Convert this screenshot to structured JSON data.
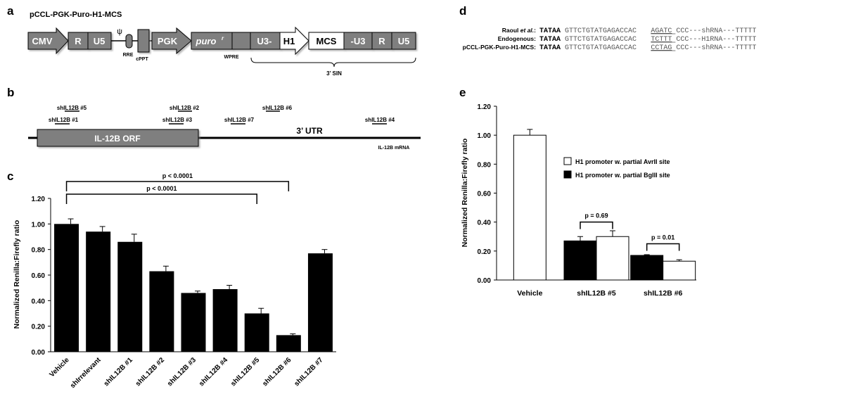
{
  "panels": {
    "a": "a",
    "b": "b",
    "c": "c",
    "d": "d",
    "e": "e"
  },
  "panel_a": {
    "title": "pCCL-PGK-Puro-H1-MCS",
    "boxes": [
      "CMV",
      "R",
      "U5",
      "PGK",
      "puro",
      "U3-",
      "H1",
      "MCS",
      "-U3",
      "R",
      "U5"
    ],
    "puro_superscript": "r",
    "psi": "ψ",
    "rre": "RRE",
    "cppt": "cPPT",
    "wpre": "WPRE",
    "sin": "3’ SIN"
  },
  "panel_b": {
    "orf": "IL-12B ORF",
    "utr": "3’ UTR",
    "mrna": "IL-12B mRNA",
    "shrnas": [
      "shIL12B #5",
      "shIL12B #1",
      "shIL12B #2",
      "shIL12B #3",
      "shIL12B #6",
      "shIL12B #7",
      "shIL12B #4"
    ]
  },
  "panel_d": {
    "rows": [
      {
        "label": "Raoul et al.:",
        "prefix": "TATAA",
        "mid": "GTTCTGTATGAGACCAC",
        "site": "AGATC",
        "tail": "CCC---shRNA---TTTTT"
      },
      {
        "label": "Endogenous:",
        "prefix": "TATAA",
        "mid": "GTTCTGTATGAGACCAC",
        "site": "TCTTT",
        "tail": "CCC---H1RNA---TTTTT"
      },
      {
        "label": "pCCL-PGK-Puro-H1-MCS:",
        "prefix": "TATAA",
        "mid": "GTTCTGTATGAGACCAC",
        "site": "CCTAG",
        "tail": "CCC---shRNA---TTTTT"
      }
    ]
  },
  "chart_data": [
    {
      "type": "bar",
      "panel": "c",
      "ylabel": "Normalized Renilla:Firefly ratio",
      "xlabel": "",
      "ylim": [
        0,
        1.2
      ],
      "yticks": [
        "0.00",
        "0.20",
        "0.40",
        "0.60",
        "0.80",
        "1.00",
        "1.20"
      ],
      "categories": [
        "Vehicle",
        "shIrrelevant",
        "shIL12B #1",
        "shIL12B #2",
        "shIL12B #3",
        "shIL12B #4",
        "shIL12B #5",
        "shIL12B #6",
        "shIL12B #7"
      ],
      "values": [
        1.0,
        0.94,
        0.86,
        0.63,
        0.46,
        0.49,
        0.3,
        0.13,
        0.77
      ],
      "errors": [
        0.04,
        0.04,
        0.06,
        0.04,
        0.015,
        0.03,
        0.04,
        0.01,
        0.03
      ],
      "color": "#000000",
      "annotations": [
        "p < 0.0001",
        "p < 0.0001"
      ],
      "grid": false
    },
    {
      "type": "bar",
      "panel": "e",
      "ylabel": "Normalized Renilla:Firefly ratio",
      "ylim": [
        0,
        1.2
      ],
      "yticks": [
        "0.00",
        "0.20",
        "0.40",
        "0.60",
        "0.80",
        "1.00",
        "1.20"
      ],
      "categories": [
        "Vehicle",
        "shIL12B #5",
        "shIL12B #6"
      ],
      "series": [
        {
          "name": "H1 promoter w. partial AvrII site",
          "color": "#ffffff",
          "values": [
            1.0,
            0.3,
            0.13
          ],
          "errors": [
            0.04,
            0.04,
            0.01
          ]
        },
        {
          "name": "H1 promoter w. partial BglII site",
          "color": "#000000",
          "values": [
            null,
            0.27,
            0.17
          ],
          "errors": [
            null,
            0.03,
            0.005
          ]
        }
      ],
      "annotations": [
        "p = 0.69",
        "p = 0.01"
      ],
      "legend": "top-right",
      "grid": false
    }
  ]
}
